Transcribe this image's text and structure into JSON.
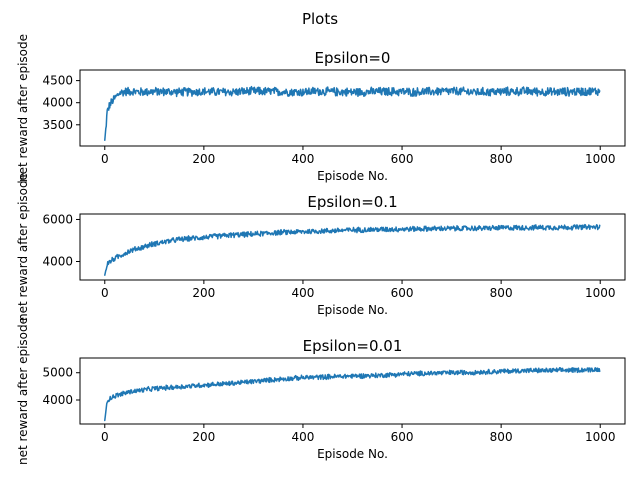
{
  "figure": {
    "suptitle": "Plots"
  },
  "chart_data": [
    {
      "type": "line",
      "title": "Epsilon=0",
      "xlabel": "Episode No.",
      "ylabel": "net reward after episode",
      "xlim": [
        -50,
        1050
      ],
      "ylim": [
        3020,
        4740
      ],
      "xticks": [
        0,
        200,
        400,
        600,
        800,
        1000
      ],
      "yticks": [
        3500,
        4000,
        4500
      ],
      "color": "#1f77b4",
      "series": [
        {
          "x": [
            0,
            5,
            10,
            20,
            30,
            40,
            50,
            70,
            90,
            120,
            150,
            200,
            250,
            300,
            350,
            400,
            425,
            450,
            500,
            550,
            600,
            620,
            650,
            700,
            750,
            800,
            850,
            900,
            950,
            999
          ],
          "y": [
            3150,
            3800,
            3950,
            4100,
            4220,
            4250,
            4260,
            4240,
            4250,
            4250,
            4240,
            4250,
            4240,
            4260,
            4250,
            4240,
            4260,
            4250,
            4240,
            4250,
            4250,
            4240,
            4250,
            4260,
            4240,
            4250,
            4260,
            4240,
            4250,
            4260
          ],
          "noise": 110
        }
      ]
    },
    {
      "type": "line",
      "title": "Epsilon=0.1",
      "xlabel": "Episode No.",
      "ylabel": "net reward after episode",
      "xlim": [
        -50,
        1050
      ],
      "ylim": [
        3120,
        6260
      ],
      "xticks": [
        0,
        200,
        400,
        600,
        800,
        1000
      ],
      "yticks": [
        4000,
        6000
      ],
      "color": "#1f77b4",
      "series": [
        {
          "x": [
            0,
            5,
            20,
            50,
            100,
            150,
            200,
            250,
            300,
            350,
            400,
            450,
            500,
            550,
            600,
            650,
            700,
            750,
            800,
            850,
            900,
            950,
            999
          ],
          "y": [
            3350,
            3900,
            4150,
            4500,
            4850,
            5050,
            5150,
            5250,
            5300,
            5380,
            5420,
            5460,
            5500,
            5520,
            5540,
            5560,
            5570,
            5580,
            5600,
            5610,
            5620,
            5630,
            5640
          ],
          "noise": 140
        }
      ]
    },
    {
      "type": "line",
      "title": "Epsilon=0.01",
      "xlabel": "Episode No.",
      "ylabel": "net reward after episode",
      "xlim": [
        -50,
        1050
      ],
      "ylim": [
        3120,
        5540
      ],
      "xticks": [
        0,
        200,
        400,
        600,
        800,
        1000
      ],
      "yticks": [
        4000,
        5000
      ],
      "color": "#1f77b4",
      "series": [
        {
          "x": [
            0,
            5,
            20,
            50,
            100,
            150,
            200,
            250,
            300,
            350,
            400,
            450,
            500,
            550,
            600,
            650,
            700,
            750,
            800,
            850,
            900,
            950,
            999
          ],
          "y": [
            3250,
            4000,
            4150,
            4300,
            4420,
            4480,
            4550,
            4600,
            4680,
            4760,
            4820,
            4850,
            4880,
            4900,
            4950,
            4980,
            5000,
            5020,
            5050,
            5080,
            5080,
            5100,
            5120
          ],
          "noise": 100
        }
      ]
    }
  ]
}
